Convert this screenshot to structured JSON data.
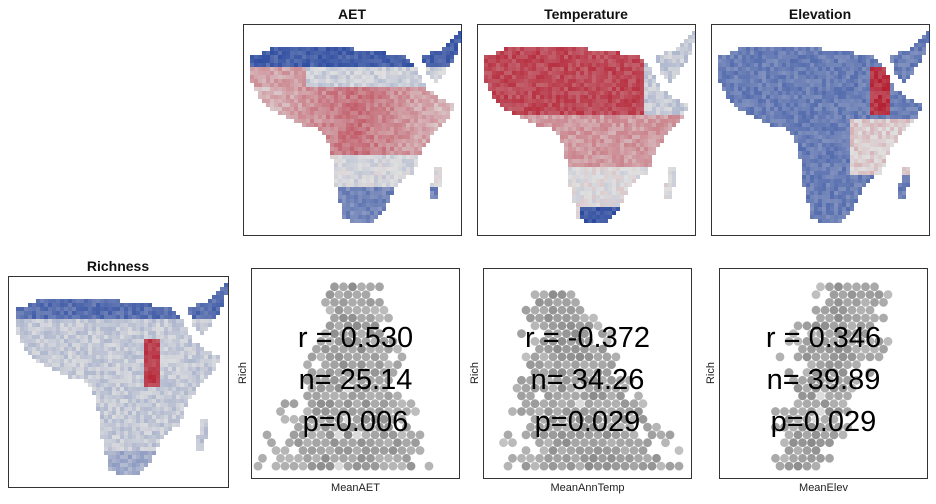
{
  "map_panels": [
    {
      "title": "AET",
      "id": "aet"
    },
    {
      "title": "Temperature",
      "id": "temp"
    },
    {
      "title": "Elevation",
      "id": "elev"
    },
    {
      "title": "Richness",
      "id": "rich"
    }
  ],
  "chart_data": [
    {
      "type": "scatter",
      "style": "hexbin",
      "xlabel": "MeanAET",
      "ylabel": "Rich",
      "stats": {
        "r": "r = 0.530",
        "n": "n= 25.14",
        "p": "p=0.006"
      }
    },
    {
      "type": "scatter",
      "style": "hexbin",
      "xlabel": "MeanAnnTemp",
      "ylabel": "Rich",
      "stats": {
        "r": "r = -0.372",
        "n": "n= 34.26",
        "p": "p=0.029"
      }
    },
    {
      "type": "scatter",
      "style": "hexbin",
      "xlabel": "MeanElev",
      "ylabel": "Rich",
      "stats": {
        "r": "r = 0.346",
        "n": "n= 39.89",
        "p": "p=0.029"
      }
    }
  ],
  "colors": {
    "high": "#b2182b",
    "low": "#2c4ba0",
    "mid": "#e0e0e0",
    "hex_point": "#a6a6a6"
  }
}
